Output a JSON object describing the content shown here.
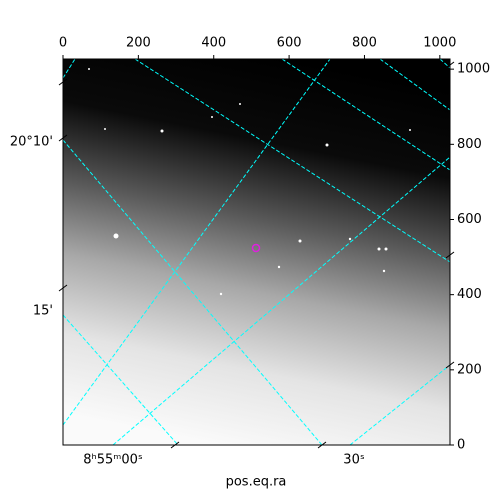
{
  "chart_data": {
    "type": "image",
    "xticks": [
      0,
      200,
      400,
      600,
      800,
      1000
    ],
    "xlim": [
      0,
      1027
    ],
    "yticks": [
      0,
      200,
      400,
      600,
      800,
      1000
    ],
    "ylim": [
      0,
      1027
    ],
    "world_x_labels": [
      "8ʰ55ᵐ00ˢ",
      "30ˢ"
    ],
    "world_y_labels": [
      "20°10'",
      "15'"
    ],
    "xlabel": "pos.eq.ra",
    "grid_color": "#00ffff"
  }
}
